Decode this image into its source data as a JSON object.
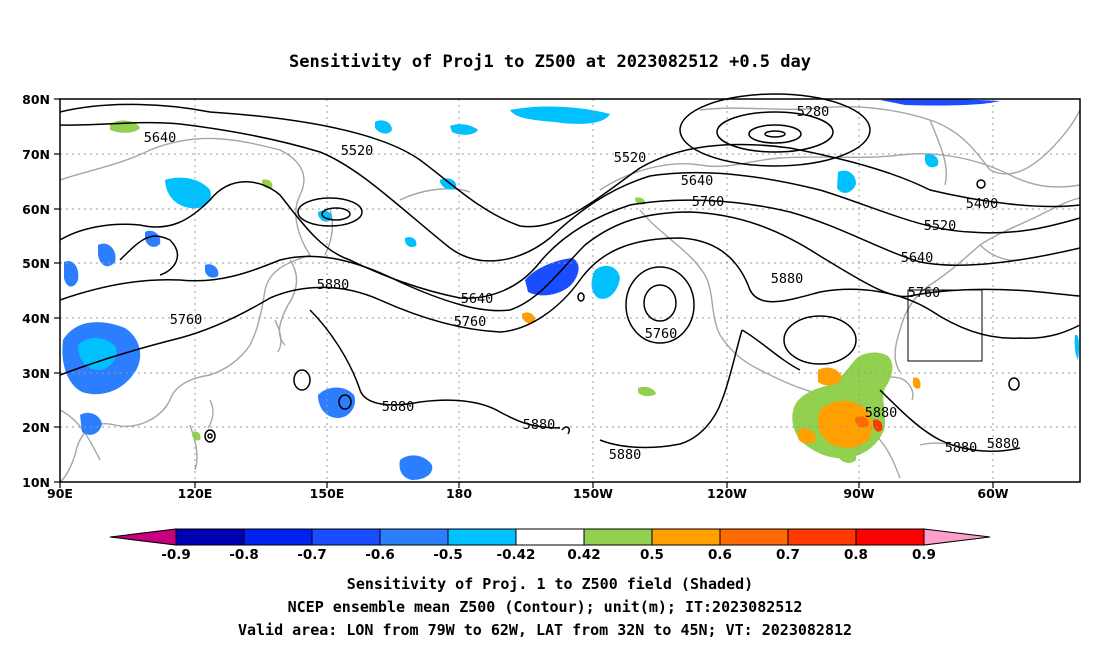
{
  "title": "Sensitivity of Proj1 to Z500 at 2023082512 +0.5 day",
  "map": {
    "lon_labels": [
      "90E",
      "120E",
      "150E",
      "180",
      "150W",
      "120W",
      "90W",
      "60W"
    ],
    "lat_labels": [
      "80N",
      "70N",
      "60N",
      "50N",
      "40N",
      "30N",
      "20N",
      "10N"
    ],
    "contour_labels": [
      "5640",
      "5520",
      "5520",
      "5280",
      "5400",
      "5520",
      "5640",
      "5640",
      "5760",
      "5760",
      "5640",
      "5760",
      "5880",
      "5760",
      "5880",
      "5760",
      "5880",
      "5880",
      "5880",
      "5880",
      "5880",
      "5880"
    ],
    "valid_box": {
      "lon": [
        "79W",
        "62W"
      ],
      "lat": [
        "32N",
        "45N"
      ]
    }
  },
  "colorbar": {
    "ticks": [
      "-0.9",
      "-0.8",
      "-0.7",
      "-0.6",
      "-0.5",
      "-0.42",
      "0.42",
      "0.5",
      "0.6",
      "0.7",
      "0.8",
      "0.9"
    ],
    "colors": [
      "#c8007f",
      "#0000b3",
      "#0022ee",
      "#1a4dff",
      "#2b7fff",
      "#00c0ff",
      "#ffffff",
      "#92d050",
      "#ffa000",
      "#ff6a00",
      "#ff3a00",
      "#ff0000",
      "#ff9ec8"
    ]
  },
  "footer": {
    "line1": "Sensitivity of Proj. 1 to Z500 field (Shaded)",
    "line2": "NCEP ensemble mean Z500 (Contour); unit(m); IT:2023082512",
    "line3": "Valid area: LON from 79W to 62W, LAT from 32N to 45N; VT: 2023082812"
  }
}
